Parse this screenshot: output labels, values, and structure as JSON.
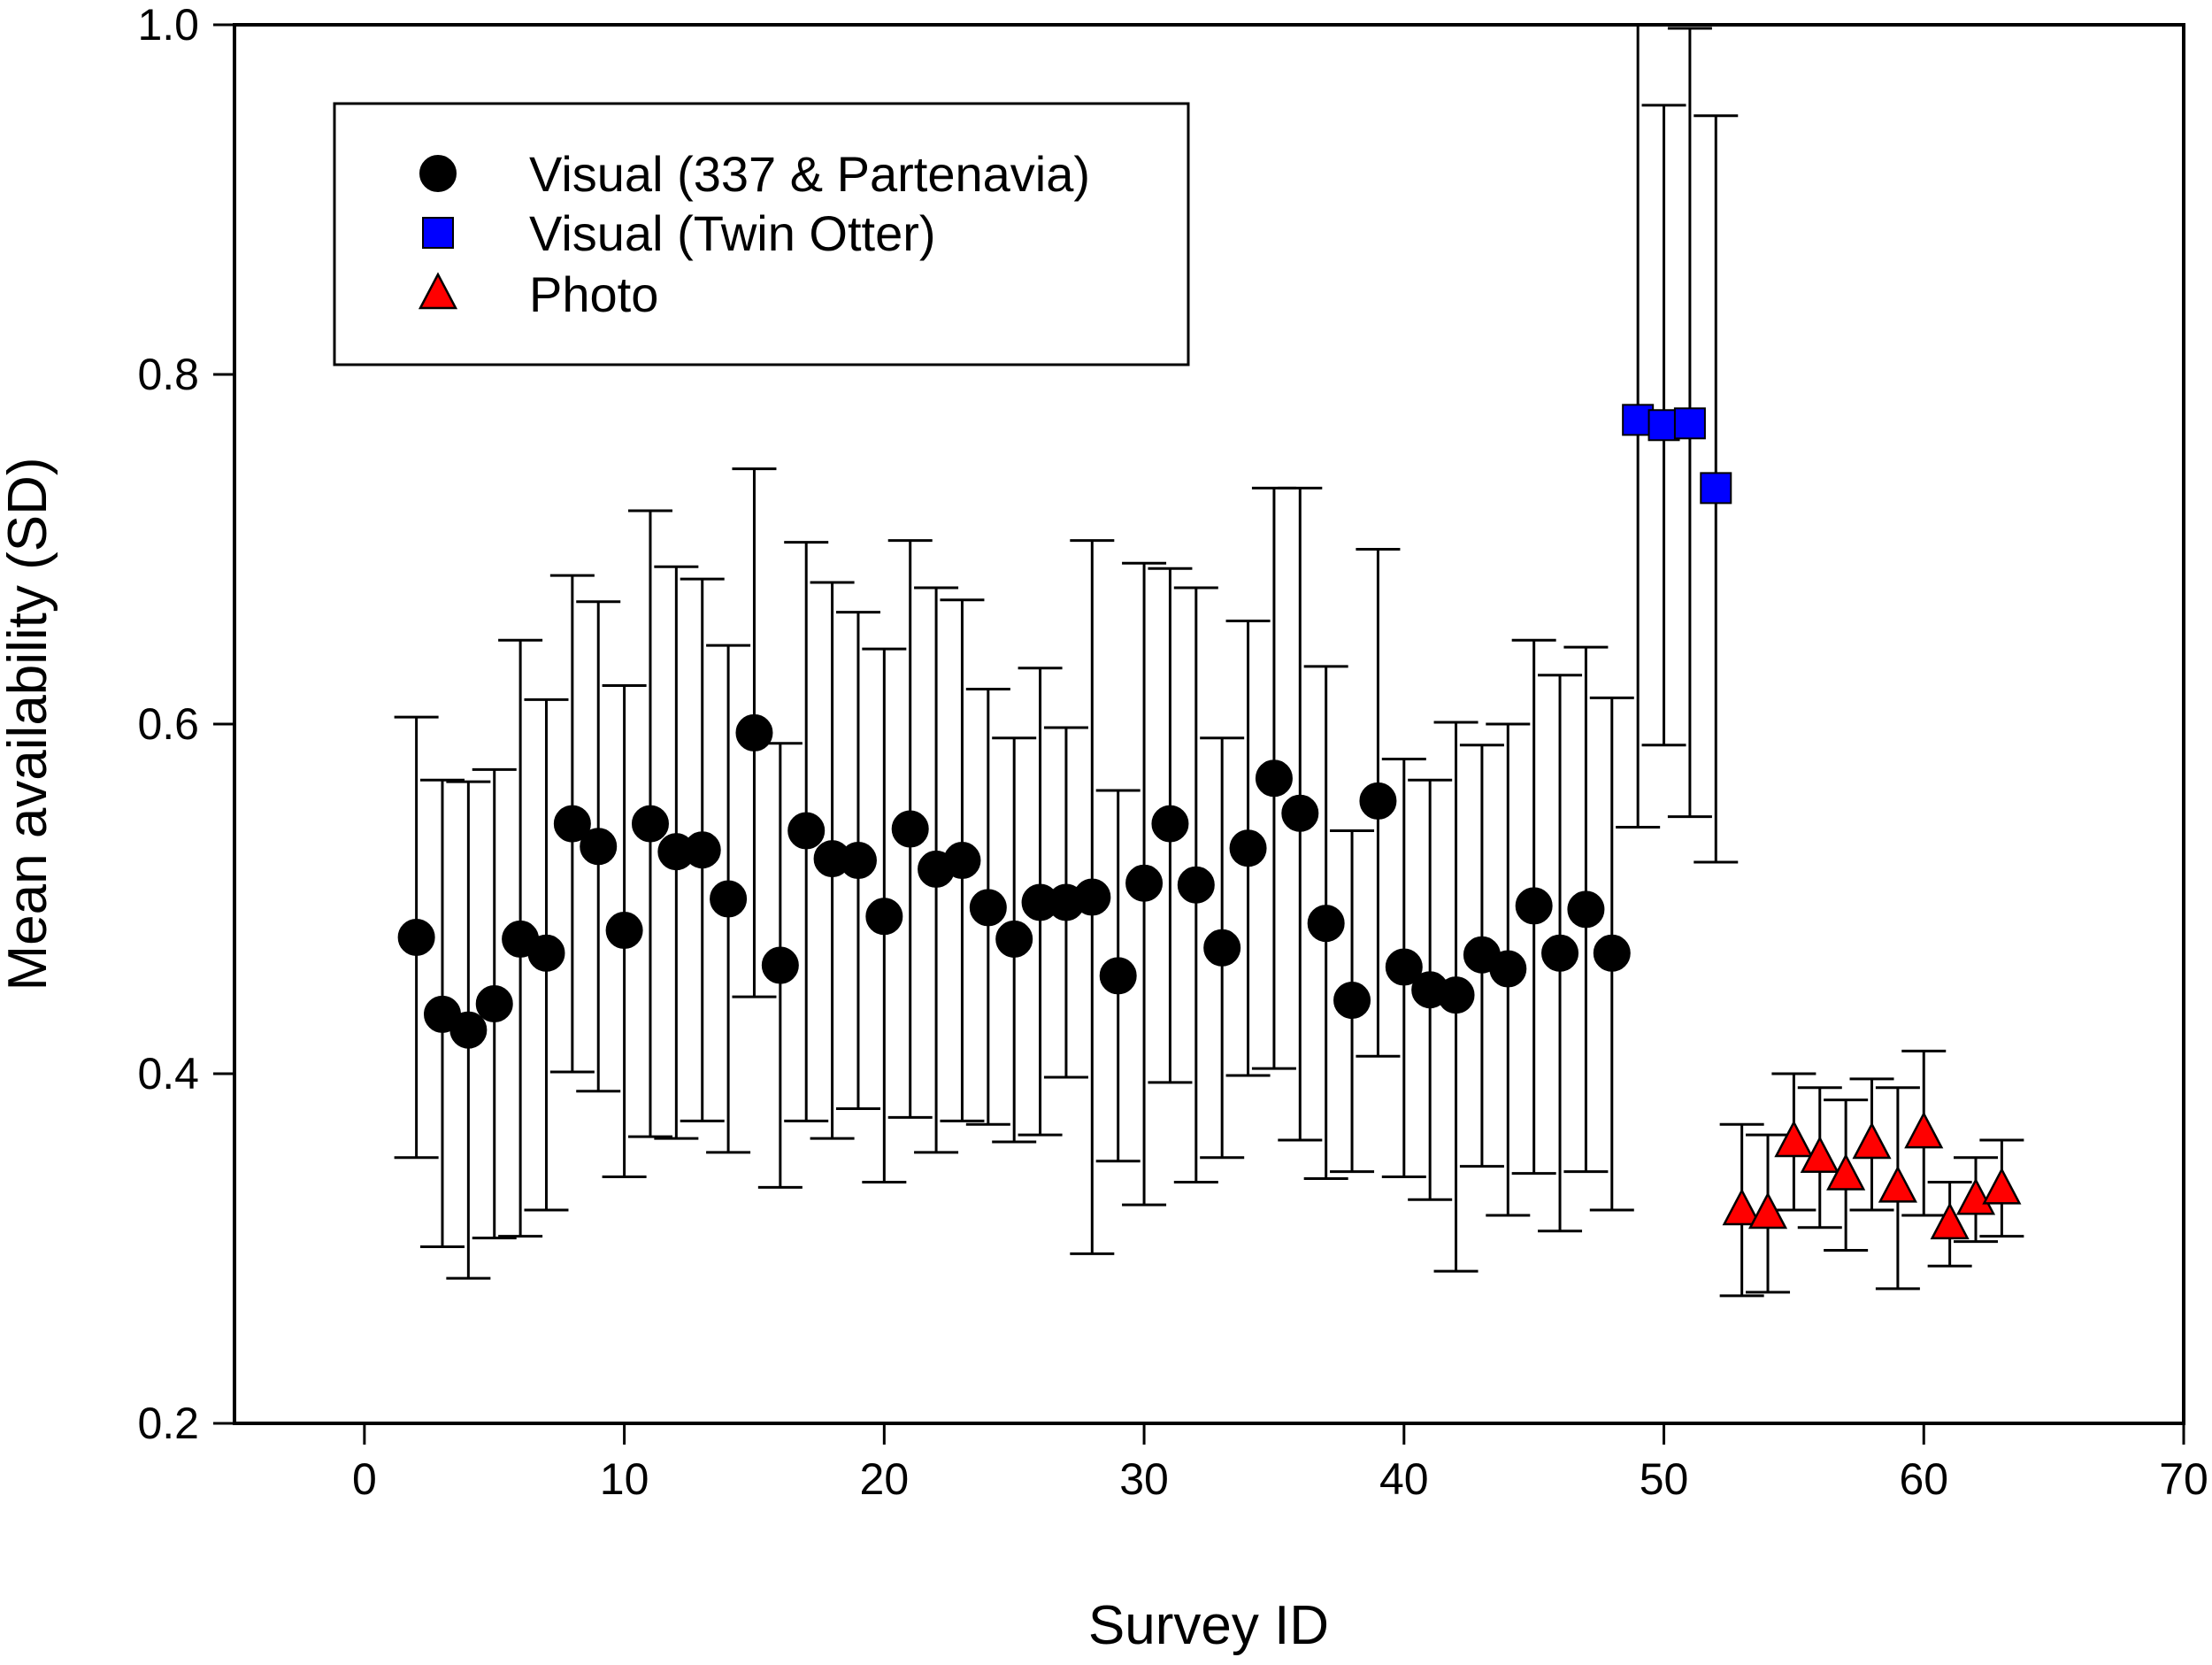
{
  "chart_data": {
    "type": "scatter",
    "title": "",
    "xlabel": "Survey ID",
    "ylabel": "Mean availability (SD)",
    "xlim": [
      -5,
      70
    ],
    "ylim": [
      0.2,
      1.0
    ],
    "x_ticks": [
      0,
      10,
      20,
      30,
      40,
      50,
      60,
      70
    ],
    "x_tick_labels": [
      "0",
      "10",
      "20",
      "30",
      "40",
      "50",
      "60",
      "70"
    ],
    "y_ticks": [
      0.2,
      0.4,
      0.6,
      0.8,
      1.0
    ],
    "y_tick_labels": [
      "0.2",
      "0.4",
      "0.6",
      "0.8",
      "1.0"
    ],
    "grid": false,
    "legend_position": "top-left",
    "series": [
      {
        "name": "Visual (337 & Partenavia)",
        "marker": "circle",
        "color": "#000000",
        "x": [
          2,
          3,
          4,
          5,
          6,
          7,
          8,
          9,
          10,
          11,
          12,
          13,
          14,
          15,
          16,
          17,
          18,
          19,
          20,
          21,
          22,
          23,
          24,
          25,
          26,
          27,
          28,
          29,
          30,
          31,
          32,
          33,
          34,
          35,
          36,
          37,
          38,
          39,
          40,
          41,
          42,
          43,
          44,
          45,
          46,
          47,
          48
        ],
        "y": [
          0.478,
          0.434,
          0.425,
          0.44,
          0.477,
          0.469,
          0.543,
          0.53,
          0.482,
          0.543,
          0.527,
          0.528,
          0.5,
          0.595,
          0.462,
          0.539,
          0.523,
          0.522,
          0.49,
          0.54,
          0.517,
          0.522,
          0.495,
          0.477,
          0.498,
          0.498,
          0.501,
          0.456,
          0.509,
          0.543,
          0.508,
          0.472,
          0.529,
          0.569,
          0.549,
          0.486,
          0.442,
          0.556,
          0.461,
          0.448,
          0.445,
          0.468,
          0.46,
          0.496,
          0.469,
          0.494,
          0.469
        ],
        "yerr_low": [
          0.352,
          0.301,
          0.283,
          0.306,
          0.307,
          0.322,
          0.401,
          0.39,
          0.341,
          0.364,
          0.363,
          0.373,
          0.355,
          0.444,
          0.335,
          0.373,
          0.363,
          0.38,
          0.338,
          0.375,
          0.355,
          0.373,
          0.371,
          0.361,
          0.365,
          0.398,
          0.297,
          0.35,
          0.325,
          0.395,
          0.338,
          0.352,
          0.399,
          0.403,
          0.362,
          0.34,
          0.344,
          0.41,
          0.341,
          0.328,
          0.287,
          0.347,
          0.319,
          0.343,
          0.31,
          0.344,
          0.322
        ],
        "yerr_high": [
          0.604,
          0.568,
          0.567,
          0.574,
          0.648,
          0.614,
          0.685,
          0.67,
          0.622,
          0.722,
          0.69,
          0.683,
          0.645,
          0.746,
          0.589,
          0.704,
          0.681,
          0.664,
          0.643,
          0.705,
          0.678,
          0.671,
          0.62,
          0.592,
          0.632,
          0.598,
          0.705,
          0.562,
          0.692,
          0.689,
          0.678,
          0.592,
          0.659,
          0.735,
          0.735,
          0.633,
          0.539,
          0.7,
          0.58,
          0.568,
          0.601,
          0.588,
          0.6,
          0.648,
          0.628,
          0.644,
          0.615
        ]
      },
      {
        "name": "Visual (Twin Otter)",
        "marker": "square",
        "color": "#0000ff",
        "x": [
          49,
          50,
          51,
          52
        ],
        "y": [
          0.774,
          0.771,
          0.772,
          0.735
        ],
        "yerr_low": [
          0.541,
          0.588,
          0.547,
          0.521
        ],
        "yerr_high": [
          1.0,
          0.954,
          0.998,
          0.948
        ]
      },
      {
        "name": "Photo",
        "marker": "triangle",
        "color": "#ff0000",
        "x": [
          53,
          54,
          55,
          56,
          57,
          58,
          59,
          60,
          61,
          62,
          63
        ],
        "y": [
          0.322,
          0.32,
          0.361,
          0.352,
          0.342,
          0.36,
          0.335,
          0.366,
          0.314,
          0.328,
          0.334
        ],
        "yerr_low": [
          0.273,
          0.275,
          0.322,
          0.312,
          0.299,
          0.322,
          0.277,
          0.319,
          0.29,
          0.304,
          0.307
        ],
        "yerr_high": [
          0.371,
          0.365,
          0.4,
          0.392,
          0.385,
          0.397,
          0.392,
          0.413,
          0.338,
          0.352,
          0.362
        ]
      }
    ]
  }
}
